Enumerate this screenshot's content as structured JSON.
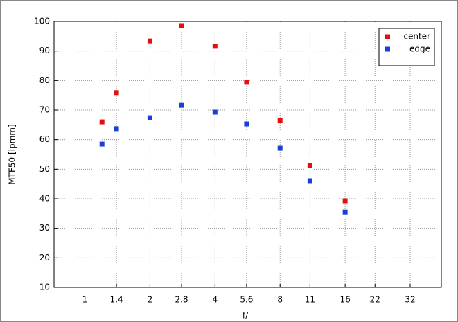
{
  "chart_data": {
    "type": "scatter",
    "xlabel": "f/",
    "ylabel": "MTF50 [lpmm]",
    "xscale": "log",
    "xlim": [
      0.72,
      44.6
    ],
    "ylim": [
      10,
      100
    ],
    "xticks": [
      1,
      1.4,
      2,
      2.8,
      4,
      5.6,
      8,
      11,
      16,
      22,
      32
    ],
    "yticks": [
      10,
      20,
      30,
      40,
      50,
      60,
      70,
      80,
      90,
      100
    ],
    "grid": true,
    "legend": "upper right",
    "x": [
      1.2,
      1.4,
      2,
      2.8,
      4,
      5.6,
      8,
      11,
      16
    ],
    "series": [
      {
        "name": "center",
        "color": "#e01010",
        "values": [
          66.0,
          75.9,
          93.4,
          98.6,
          91.6,
          79.4,
          66.5,
          51.3,
          39.3
        ]
      },
      {
        "name": "edge",
        "color": "#1a3fd8",
        "values": [
          58.5,
          63.7,
          67.4,
          71.6,
          69.3,
          65.3,
          57.1,
          46.1,
          35.5
        ]
      }
    ]
  }
}
